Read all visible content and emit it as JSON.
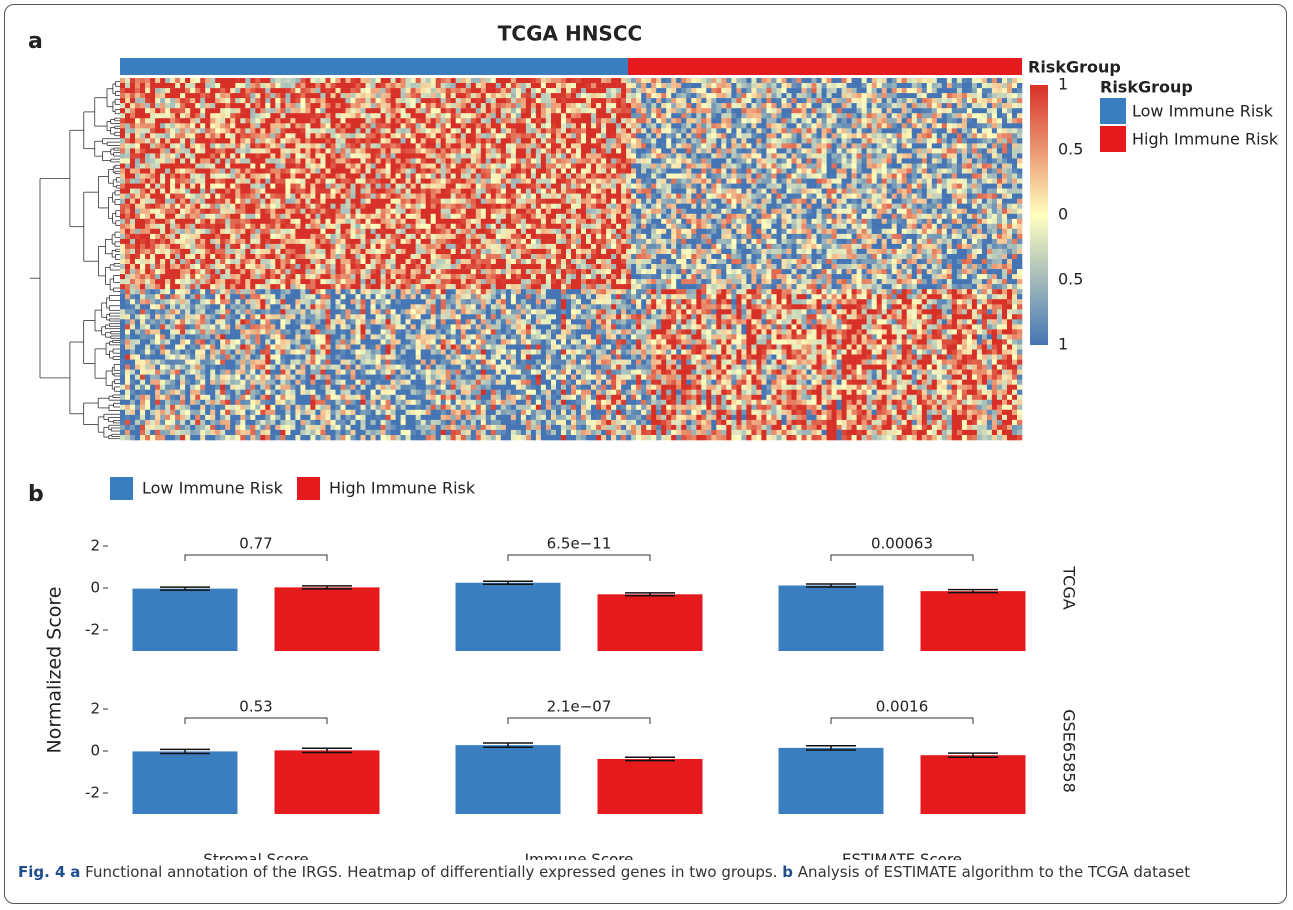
{
  "panel_a": {
    "label": "a",
    "title": "TCGA HNSCC",
    "annotation_label": "RiskGroup",
    "legend_title": "RiskGroup",
    "legend": [
      {
        "name": "Low Immune Risk",
        "color": "#3a7ebf"
      },
      {
        "name": "High Immune Risk",
        "color": "#e41a1c"
      }
    ],
    "colorbar_ticks": [
      1,
      {
        "value": 0.5,
        "label": "0.5"
      },
      0,
      {
        "value": -0.5,
        "label": "0.5"
      },
      {
        "value": -1,
        "label": "1"
      }
    ]
  },
  "chart_data": {
    "type": "bar",
    "label": "b",
    "y_label": "Normalized Score",
    "categories": [
      "Stromal Score",
      "Immune Score",
      "ESTIMATE Score"
    ],
    "ylim": [
      -3,
      3
    ],
    "yticks": [
      -2,
      0,
      2
    ],
    "series": [
      {
        "name": "Low Immune Risk",
        "color": "#3a7ebf"
      },
      {
        "name": "High Immune Risk",
        "color": "#e41a1c"
      }
    ],
    "facets": [
      {
        "name": "TCGA",
        "p_values": [
          "0.77",
          "6.5e−11",
          "0.00063"
        ],
        "series": [
          {
            "values": [
              -0.03,
              0.25,
              0.12
            ],
            "errors": [
              0.07,
              0.07,
              0.07
            ]
          },
          {
            "values": [
              0.03,
              -0.3,
              -0.15
            ],
            "errors": [
              0.07,
              0.07,
              0.07
            ]
          }
        ]
      },
      {
        "name": "GSE65858",
        "p_values": [
          "0.53",
          "2.1e−07",
          "0.0016"
        ],
        "series": [
          {
            "values": [
              -0.02,
              0.28,
              0.15
            ],
            "errors": [
              0.1,
              0.1,
              0.1
            ]
          },
          {
            "values": [
              0.03,
              -0.38,
              -0.2
            ],
            "errors": [
              0.1,
              0.08,
              0.1
            ]
          }
        ]
      }
    ]
  },
  "caption": {
    "fig": "Fig. 4",
    "parts": [
      {
        "label": "a",
        "text": "Functional annotation of the IRGS. Heatmap of differentially expressed genes in two groups."
      },
      {
        "label": "b",
        "text": "Analysis of ESTIMATE algorithm to the TCGA dataset"
      }
    ]
  }
}
